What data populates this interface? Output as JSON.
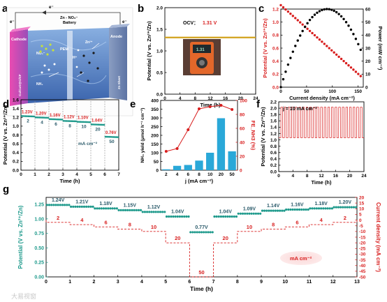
{
  "panels": {
    "a": {
      "label": "a",
      "battery_title": "Zn - NO₃⁻",
      "battery_subtitle": "Battery",
      "electron_top": "e⁻",
      "electron_left": "e⁻",
      "electron_right": "e⁻",
      "cathode": "Cathode",
      "anode": "Anode",
      "cathode_material": "Cu/CuO@C/CF",
      "anode_material": "Zn Sheet",
      "membrane": "PEM",
      "species": [
        "NO₃⁻",
        "NH₃",
        "H⁺",
        "Zn²⁺"
      ]
    },
    "b": {
      "label": "b",
      "annotation_label": "OCV：",
      "annotation_value": "1.31 V",
      "meter_reading": "1.31"
    },
    "c": {
      "label": "c"
    },
    "d": {
      "label": "d",
      "unit": "mA cm⁻²"
    },
    "e": {
      "label": "e"
    },
    "f": {
      "label": "f",
      "annotation": "j = 10 mA cm⁻²"
    },
    "g": {
      "label": "g",
      "unit_badge": "mA cm⁻²"
    }
  },
  "watermark": "大易视窗",
  "colors": {
    "red": "#d81e1e",
    "teal": "#1f9a8c",
    "gold": "#d2a21c",
    "bar": "#2aa8d8",
    "black": "#000000"
  },
  "chart_data": [
    {
      "panel": "b",
      "type": "line",
      "xlabel": "Time (h)",
      "ylabel": "Potential (V vs. Zn²⁺/Zn)",
      "xlim": [
        0,
        24
      ],
      "ylim": [
        0.0,
        2.0
      ],
      "xticks": [
        0,
        4,
        8,
        12,
        16,
        20,
        24
      ],
      "yticks": [
        0.0,
        0.5,
        1.0,
        1.5,
        2.0
      ],
      "series": [
        {
          "x": [
            0,
            24
          ],
          "y": [
            1.31,
            1.31
          ],
          "color": "#d2a21c"
        }
      ]
    },
    {
      "panel": "c",
      "type": "scatter",
      "xlabel": "Current density (mA cm⁻²)",
      "ylabel": "Potential (V vs. Zn²⁺/Zn)",
      "y2label": "Power (mW cm⁻²)",
      "xlim": [
        0,
        160
      ],
      "ylim": [
        0.0,
        1.2
      ],
      "y2lim": [
        0,
        60
      ],
      "xticks": [
        0,
        50,
        100,
        150
      ],
      "yticks": [
        0.0,
        0.2,
        0.4,
        0.6,
        0.8,
        1.0,
        1.2
      ],
      "y2ticks": [
        0,
        10,
        20,
        30,
        40,
        50,
        60
      ],
      "series": [
        {
          "axis": "left",
          "color": "#d81e1e",
          "x": [
            0,
            155
          ],
          "y": [
            1.26,
            0.17
          ]
        },
        {
          "axis": "right",
          "color": "#000000",
          "peak": {
            "x": 90,
            "y": 60
          }
        }
      ]
    },
    {
      "panel": "d",
      "type": "line",
      "xlabel": "Time (h)",
      "ylabel": "Potential (V vs. Zn²⁺/Zn)",
      "xlim": [
        0,
        7
      ],
      "ylim": [
        0.0,
        1.6
      ],
      "xticks": [
        0,
        1,
        2,
        3,
        4,
        5,
        6,
        7
      ],
      "yticks": [
        0.0,
        0.2,
        0.4,
        0.6,
        0.8,
        1.0,
        1.2,
        1.4,
        1.6
      ],
      "current_densities": [
        "2",
        "4",
        "6",
        "8",
        "10",
        "20",
        "50"
      ],
      "voltages": [
        1.23,
        1.2,
        1.16,
        1.12,
        1.1,
        1.04,
        0.76
      ],
      "voltage_labels": [
        "1.23V",
        "1.20V",
        "1.16V",
        "1.12V",
        "1.10V",
        "1.04V",
        "0.76V"
      ]
    },
    {
      "panel": "e",
      "type": "bar",
      "xlabel": "j (mA cm⁻²)",
      "ylabel": "NH₃ yield (μmol h⁻¹ cm⁻²)",
      "y2label": "FE_NH3 (%)",
      "categories": [
        "2",
        "4",
        "6",
        "8",
        "10",
        "20",
        "50"
      ],
      "ylim": [
        0,
        400
      ],
      "y2lim": [
        0,
        100
      ],
      "yticks": [
        0,
        50,
        100,
        150,
        200,
        250,
        300,
        350,
        400
      ],
      "y2ticks": [
        0,
        20,
        40,
        60,
        80,
        100
      ],
      "bars": [
        5,
        25,
        30,
        55,
        100,
        298,
        108
      ],
      "fe": [
        27,
        31,
        58,
        88,
        91,
        93,
        87
      ]
    },
    {
      "panel": "f",
      "type": "line",
      "xlabel": "Time (h)",
      "ylabel": "Potential (V vs. Zn²⁺/Zn)",
      "xlim": [
        0,
        24
      ],
      "ylim": [
        0.0,
        2.2
      ],
      "xticks": [
        0,
        4,
        8,
        12,
        16,
        20,
        24
      ],
      "yticks": [
        0.0,
        0.2,
        0.4,
        0.6,
        0.8,
        1.0,
        1.2,
        1.4,
        1.6,
        1.8,
        2.0,
        2.2
      ],
      "cycle_high": 2.03,
      "cycle_low": 1.07,
      "cycles": 23
    },
    {
      "panel": "g",
      "type": "line",
      "xlabel": "Time (h)",
      "ylabel": "Potential (V vs. Zn²⁺/Zn)",
      "y2label": "Current density (mA cm⁻²)",
      "xlim": [
        0,
        13
      ],
      "ylim": [
        0.0,
        1.25
      ],
      "y2lim": [
        -50,
        20
      ],
      "xticks": [
        0,
        1,
        2,
        3,
        4,
        5,
        6,
        7,
        8,
        9,
        10,
        11,
        12,
        13
      ],
      "yticks": [
        0.0,
        0.25,
        0.5,
        0.75,
        1.0,
        1.25
      ],
      "y2ticks": [
        -50,
        -45,
        -40,
        -35,
        -30,
        -25,
        -20,
        -15,
        -10,
        -5,
        0,
        5,
        10,
        15,
        20
      ],
      "voltages": [
        1.24,
        1.21,
        1.18,
        1.15,
        1.12,
        1.04,
        0.77,
        1.04,
        1.09,
        1.14,
        1.16,
        1.18,
        1.2
      ],
      "voltage_labels": [
        "1.24V",
        "1.21V",
        "1.18V",
        "1.15V",
        "1.12V",
        "1.04V",
        "0.77V",
        "1.04V",
        "1.09V",
        "1.14V",
        "1.16V",
        "1.18V",
        "1.20V"
      ],
      "current_labels": [
        "2",
        "4",
        "6",
        "8",
        "10",
        "20",
        "50",
        "20",
        "10",
        "8",
        "6",
        "4",
        "2"
      ],
      "current_values": [
        -2,
        -4,
        -6,
        -8,
        -10,
        -20,
        -50,
        -20,
        -10,
        -8,
        -6,
        -4,
        -2
      ]
    }
  ]
}
